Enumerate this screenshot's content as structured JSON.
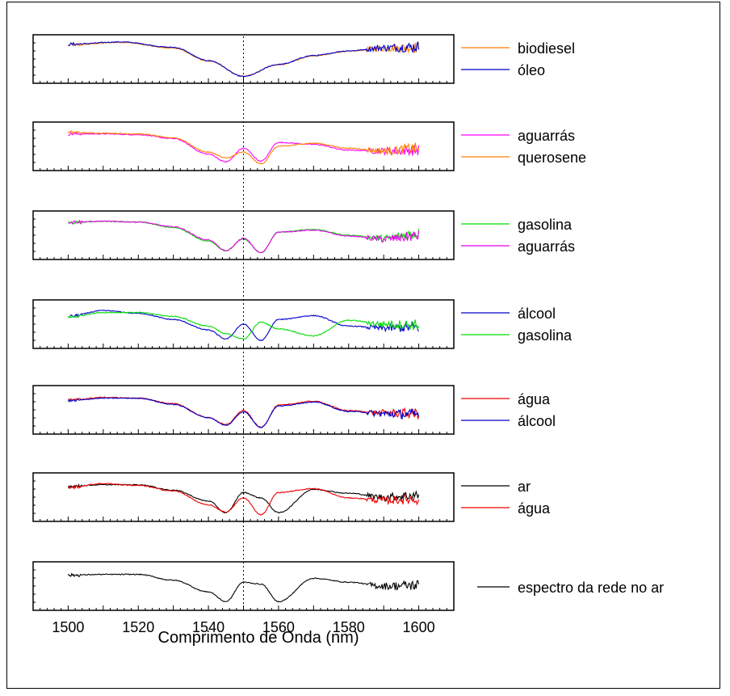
{
  "chart_data": {
    "type": "line",
    "xlabel": "Comprimento de Onda (nm)",
    "xlim": [
      1490,
      1610
    ],
    "xticks": [
      1500,
      1520,
      1540,
      1560,
      1580,
      1600
    ],
    "tick_labels": [
      "1500",
      "1520",
      "1540",
      "1560",
      "1580",
      "1600"
    ],
    "reference_line_x": 1550,
    "grid": false,
    "legend_position": "right of each panel",
    "panels": [
      {
        "series": [
          {
            "name": "biodiesel",
            "color": "#ff7f00",
            "x": [
              1500,
              1515,
              1530,
              1540,
              1550,
              1560,
              1570,
              1580,
              1590,
              1600
            ],
            "y": [
              0.86,
              0.93,
              0.78,
              0.45,
              0.06,
              0.35,
              0.58,
              0.7,
              0.78,
              0.8
            ]
          },
          {
            "name": "óleo",
            "color": "#0000cc",
            "x": [
              1500,
              1515,
              1530,
              1540,
              1550,
              1560,
              1570,
              1580,
              1590,
              1600
            ],
            "y": [
              0.88,
              0.94,
              0.8,
              0.46,
              0.05,
              0.36,
              0.59,
              0.71,
              0.79,
              0.81
            ]
          }
        ]
      },
      {
        "series": [
          {
            "name": "aguarrás",
            "color": "#ff00ff",
            "x": [
              1500,
              1510,
              1520,
              1530,
              1540,
              1545,
              1550,
              1555,
              1560,
              1570,
              1580,
              1590,
              1600
            ],
            "y": [
              0.82,
              0.82,
              0.8,
              0.7,
              0.3,
              0.1,
              0.45,
              0.12,
              0.6,
              0.55,
              0.4,
              0.38,
              0.4
            ]
          },
          {
            "name": "querosene",
            "color": "#ff7f00",
            "x": [
              1500,
              1510,
              1520,
              1530,
              1540,
              1545,
              1550,
              1555,
              1560,
              1570,
              1580,
              1590,
              1600
            ],
            "y": [
              0.86,
              0.84,
              0.82,
              0.72,
              0.35,
              0.2,
              0.35,
              0.05,
              0.5,
              0.58,
              0.45,
              0.38,
              0.45
            ]
          }
        ]
      },
      {
        "series": [
          {
            "name": "gasolina",
            "color": "#00dd00",
            "x": [
              1500,
              1510,
              1520,
              1530,
              1540,
              1545,
              1550,
              1555,
              1560,
              1570,
              1580,
              1590,
              1600
            ],
            "y": [
              0.82,
              0.86,
              0.84,
              0.7,
              0.35,
              0.1,
              0.4,
              0.05,
              0.58,
              0.65,
              0.5,
              0.42,
              0.55
            ]
          },
          {
            "name": "aguarrás",
            "color": "#ee00ee",
            "x": [
              1500,
              1510,
              1520,
              1530,
              1540,
              1545,
              1550,
              1555,
              1560,
              1570,
              1580,
              1590,
              1600
            ],
            "y": [
              0.84,
              0.86,
              0.84,
              0.72,
              0.38,
              0.1,
              0.42,
              0.05,
              0.58,
              0.63,
              0.48,
              0.4,
              0.48
            ]
          }
        ]
      },
      {
        "series": [
          {
            "name": "álcool",
            "color": "#0000cc",
            "x": [
              1500,
              1510,
              1520,
              1530,
              1540,
              1545,
              1550,
              1555,
              1560,
              1570,
              1580,
              1590,
              1600
            ],
            "y": [
              0.7,
              0.85,
              0.78,
              0.62,
              0.35,
              0.12,
              0.5,
              0.08,
              0.62,
              0.72,
              0.45,
              0.4,
              0.42
            ]
          },
          {
            "name": "gasolina",
            "color": "#00dd00",
            "x": [
              1500,
              1510,
              1520,
              1530,
              1540,
              1545,
              1550,
              1555,
              1560,
              1570,
              1580,
              1590,
              1600
            ],
            "y": [
              0.68,
              0.8,
              0.8,
              0.7,
              0.45,
              0.25,
              0.12,
              0.55,
              0.38,
              0.2,
              0.6,
              0.5,
              0.48
            ]
          }
        ]
      },
      {
        "series": [
          {
            "name": "água",
            "color": "#ee0000",
            "x": [
              1500,
              1510,
              1520,
              1530,
              1540,
              1545,
              1550,
              1555,
              1560,
              1570,
              1580,
              1590,
              1600
            ],
            "y": [
              0.75,
              0.82,
              0.8,
              0.66,
              0.3,
              0.12,
              0.48,
              0.05,
              0.62,
              0.72,
              0.48,
              0.42,
              0.4
            ]
          },
          {
            "name": "álcool",
            "color": "#0000cc",
            "x": [
              1500,
              1510,
              1520,
              1530,
              1540,
              1545,
              1550,
              1555,
              1560,
              1570,
              1580,
              1590,
              1600
            ],
            "y": [
              0.73,
              0.8,
              0.8,
              0.64,
              0.3,
              0.1,
              0.45,
              0.05,
              0.6,
              0.7,
              0.46,
              0.4,
              0.38
            ]
          }
        ]
      },
      {
        "series": [
          {
            "name": "ar",
            "color": "#000000",
            "x": [
              1500,
              1510,
              1520,
              1530,
              1540,
              1545,
              1550,
              1555,
              1560,
              1570,
              1580,
              1590,
              1600
            ],
            "y": [
              0.78,
              0.82,
              0.82,
              0.68,
              0.4,
              0.1,
              0.62,
              0.48,
              0.1,
              0.7,
              0.6,
              0.5,
              0.55
            ]
          },
          {
            "name": "água",
            "color": "#ee0000",
            "x": [
              1500,
              1510,
              1520,
              1530,
              1540,
              1545,
              1550,
              1555,
              1560,
              1570,
              1580,
              1590,
              1600
            ],
            "y": [
              0.75,
              0.85,
              0.8,
              0.66,
              0.3,
              0.12,
              0.48,
              0.05,
              0.62,
              0.72,
              0.48,
              0.42,
              0.45
            ]
          }
        ]
      },
      {
        "series": [
          {
            "name": "espectro da rede no ar",
            "color": "#000000",
            "x": [
              1500,
              1510,
              1520,
              1530,
              1540,
              1545,
              1550,
              1555,
              1560,
              1570,
              1580,
              1590,
              1600
            ],
            "y": [
              0.78,
              0.8,
              0.8,
              0.65,
              0.35,
              0.1,
              0.6,
              0.55,
              0.1,
              0.7,
              0.6,
              0.5,
              0.52
            ]
          }
        ]
      }
    ]
  }
}
